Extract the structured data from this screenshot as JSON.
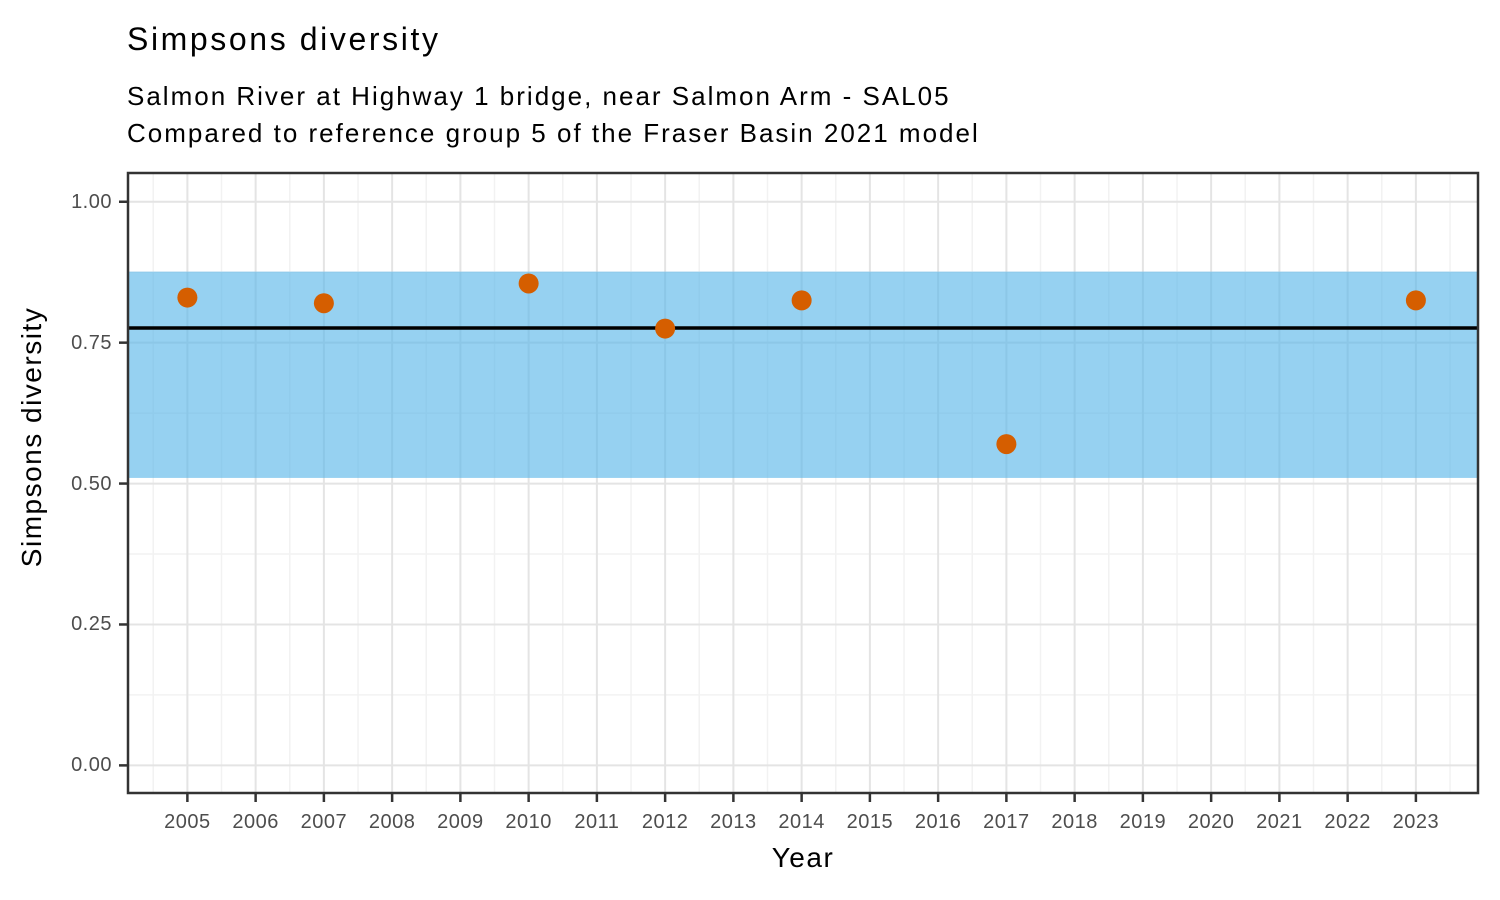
{
  "chart_data": {
    "type": "scatter",
    "title": "Simpsons diversity",
    "subtitle_lines": [
      "Salmon River at Highway 1 bridge, near Salmon Arm - SAL05",
      "Compared to reference group 5 of the Fraser Basin 2021 model"
    ],
    "xlabel": "Year",
    "ylabel": "Simpsons diversity",
    "x_ticks": [
      2005,
      2006,
      2007,
      2008,
      2009,
      2010,
      2011,
      2012,
      2013,
      2014,
      2015,
      2016,
      2017,
      2018,
      2019,
      2020,
      2021,
      2022,
      2023
    ],
    "y_ticks": [
      {
        "value": 0.0,
        "label": "0.00"
      },
      {
        "value": 0.25,
        "label": "0.25"
      },
      {
        "value": 0.5,
        "label": "0.50"
      },
      {
        "value": 0.75,
        "label": "0.75"
      },
      {
        "value": 1.0,
        "label": "1.00"
      }
    ],
    "xlim": [
      2004.13,
      2023.91
    ],
    "ylim": [
      -0.049,
      1.051
    ],
    "grid": {
      "major": true,
      "minor": true
    },
    "legend_position": "none",
    "points": [
      {
        "x": 2005,
        "y": 0.83
      },
      {
        "x": 2007,
        "y": 0.82
      },
      {
        "x": 2010,
        "y": 0.855
      },
      {
        "x": 2012,
        "y": 0.775
      },
      {
        "x": 2014,
        "y": 0.825
      },
      {
        "x": 2017,
        "y": 0.57
      },
      {
        "x": 2023,
        "y": 0.825
      }
    ],
    "reference_band": {
      "ymin": 0.51,
      "ymax": 0.876
    },
    "reference_line_y": 0.776,
    "style": {
      "point_color": "#D55E00",
      "point_radius": 10,
      "band_color": "#56B4E9",
      "band_opacity": 0.62,
      "reference_line_color": "#000000",
      "reference_line_width": 3.5,
      "grid_major_color": "#E4E4E4",
      "grid_minor_color": "#F2F2F2",
      "panel_border_color": "#333333",
      "tick_mark_color": "#333333",
      "tick_label_color": "#4D4D4D",
      "title_color": "#000000"
    }
  }
}
